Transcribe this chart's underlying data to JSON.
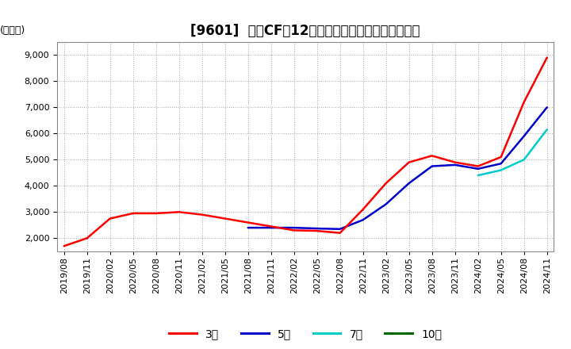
{
  "title": "[9601]  投賄CFだ12か月移動合計の標準偏差の推移",
  "ylabel": "(百万円)",
  "ylim": [
    1500,
    9500
  ],
  "yticks": [
    2000,
    3000,
    4000,
    5000,
    6000,
    7000,
    8000,
    9000
  ],
  "line_colors": {
    "3年": "#FF0000",
    "5年": "#0000CC",
    "7年": "#00CCCC",
    "10年": "#006600"
  },
  "legend_labels": [
    "3年",
    "5年",
    "7年",
    "10年"
  ],
  "x_labels": [
    "2019/08",
    "2019/11",
    "2020/02",
    "2020/05",
    "2020/08",
    "2020/11",
    "2021/02",
    "2021/05",
    "2021/08",
    "2021/11",
    "2022/02",
    "2022/05",
    "2022/08",
    "2022/11",
    "2023/02",
    "2023/05",
    "2023/08",
    "2023/11",
    "2024/02",
    "2024/05",
    "2024/08",
    "2024/11"
  ],
  "data_3y": [
    1700,
    2000,
    2750,
    2950,
    2950,
    3000,
    2900,
    2750,
    2600,
    2450,
    2300,
    2280,
    2200,
    3100,
    4100,
    4900,
    5150,
    4900,
    4750,
    5100,
    7200,
    8900
  ],
  "data_5y": [
    null,
    null,
    null,
    null,
    null,
    null,
    null,
    null,
    2400,
    2400,
    2400,
    2370,
    2350,
    2700,
    3300,
    4100,
    4750,
    4800,
    4650,
    4850,
    5900,
    7000
  ],
  "data_7y": [
    null,
    null,
    null,
    null,
    null,
    null,
    null,
    null,
    null,
    null,
    null,
    null,
    null,
    null,
    null,
    null,
    null,
    null,
    4400,
    4600,
    5000,
    6150
  ],
  "data_10y": [
    null,
    null,
    null,
    null,
    null,
    null,
    null,
    null,
    null,
    null,
    null,
    null,
    null,
    null,
    null,
    null,
    null,
    null,
    null,
    null,
    null,
    null
  ],
  "bg_color": "#FFFFFF",
  "grid_color": "#AAAAAA",
  "title_fontsize": 12,
  "tick_fontsize": 8
}
